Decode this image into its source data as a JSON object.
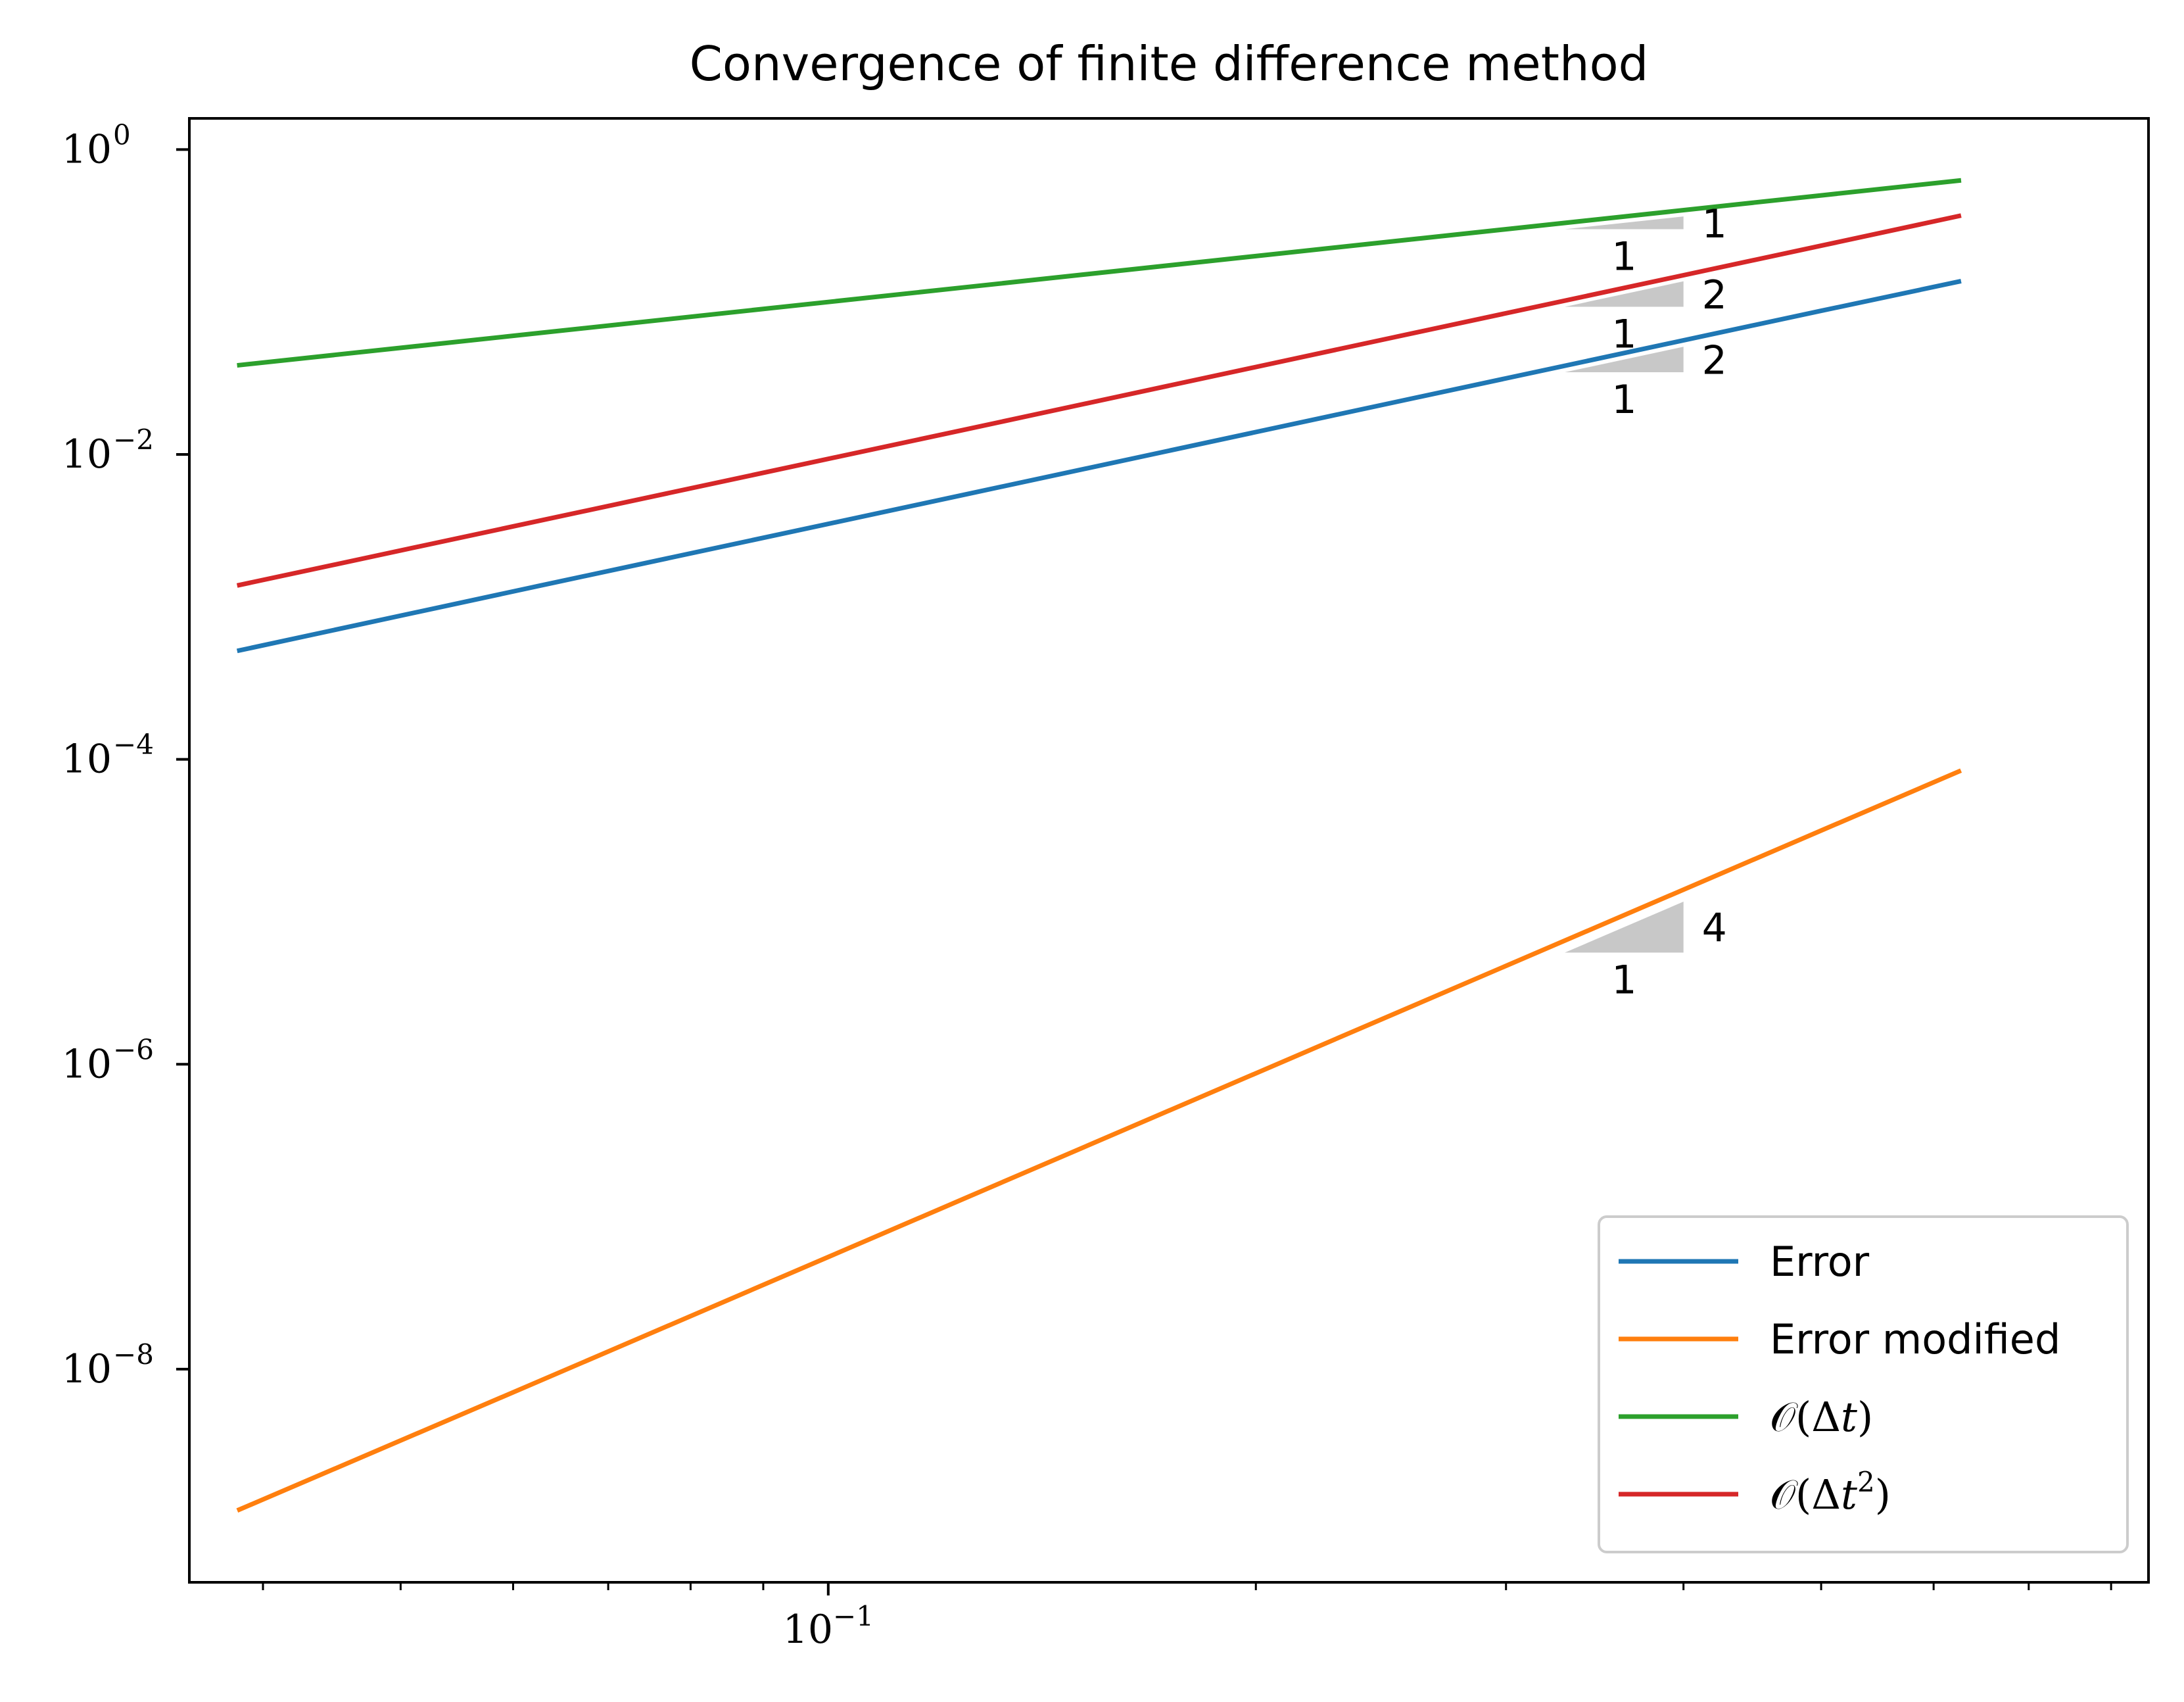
{
  "chart_data": {
    "type": "line",
    "title": "Convergence of finite difference method",
    "xlabel": "",
    "ylabel": "",
    "xscale": "log",
    "yscale": "log",
    "xlim": [
      0.0355,
      0.85
    ],
    "ylim": [
      4e-10,
      1.6
    ],
    "x_ticks": [
      {
        "value": 0.1,
        "label": "10",
        "exp": "−1"
      }
    ],
    "y_ticks": [
      {
        "value": 1,
        "label": "10",
        "exp": "0"
      },
      {
        "value": 0.01,
        "label": "10",
        "exp": "−2"
      },
      {
        "value": 0.0001,
        "label": "10",
        "exp": "−4"
      },
      {
        "value": 1e-06,
        "label": "10",
        "exp": "−6"
      },
      {
        "value": 1e-08,
        "label": "10",
        "exp": "−8"
      }
    ],
    "grid": false,
    "legend_position": "bottom-right",
    "series": [
      {
        "name": "Error",
        "color": "#1f77b4",
        "x": [
          0.0385,
          0.0625,
          0.125,
          0.25,
          0.5,
          0.625
        ],
        "y": [
          0.000518,
          0.00137,
          0.00547,
          0.0219,
          0.0875,
          0.136
        ]
      },
      {
        "name": "Error modified",
        "color": "#ff7f0e",
        "x": [
          0.0385,
          0.0625,
          0.125,
          0.25,
          0.5,
          0.625
        ],
        "y": [
          1.2e-09,
          8.3e-09,
          1.33e-07,
          2.13e-06,
          3.41e-05,
          8.32e-05
        ]
      },
      {
        "name": "O(Δt)",
        "legend_main": "𝒪(Δ",
        "legend_var": "t",
        "legend_sup": "",
        "legend_close": ")",
        "color": "#2ca02c",
        "x": [
          0.0385,
          0.0625,
          0.125,
          0.25,
          0.5,
          0.625
        ],
        "y": [
          0.0385,
          0.0625,
          0.125,
          0.25,
          0.5,
          0.625
        ]
      },
      {
        "name": "O(Δt²)",
        "legend_main": "𝒪(Δ",
        "legend_var": "t",
        "legend_sup": "2",
        "legend_close": ")",
        "color": "#d62728",
        "x": [
          0.0385,
          0.0625,
          0.125,
          0.25,
          0.5,
          0.625
        ],
        "y": [
          0.00139,
          0.00366,
          0.0146,
          0.0586,
          0.234,
          0.366
        ]
      }
    ],
    "slope_triangles": [
      {
        "x0": 0.33,
        "x1": 0.4,
        "y_base": 0.3,
        "slope": 1,
        "run_label": "1",
        "rise_label": "1"
      },
      {
        "x0": 0.33,
        "x1": 0.4,
        "y_base": 0.093,
        "slope": 2,
        "run_label": "1",
        "rise_label": "2"
      },
      {
        "x0": 0.33,
        "x1": 0.4,
        "y_base": 0.0346,
        "slope": 2,
        "run_label": "1",
        "rise_label": "2"
      },
      {
        "x0": 0.33,
        "x1": 0.4,
        "y_base": 5.4e-06,
        "slope": 4,
        "run_label": "1",
        "rise_label": "4"
      }
    ]
  }
}
